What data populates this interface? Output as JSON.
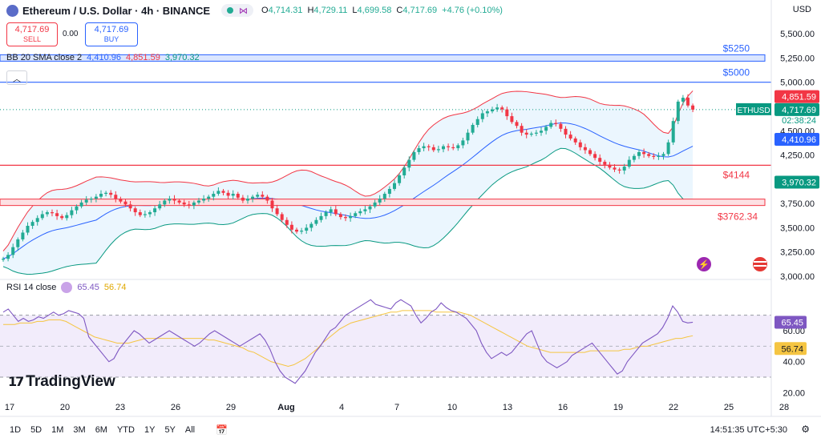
{
  "header": {
    "title": "Ethereum / U.S. Dollar · 4h · BINANCE",
    "ohlc": [
      {
        "k": "O",
        "v": "4,714.31"
      },
      {
        "k": "H",
        "v": "4,729.11"
      },
      {
        "k": "L",
        "v": "4,699.58"
      },
      {
        "k": "C",
        "v": "4,717.69"
      }
    ],
    "change": "+4.76 (+0.10%)",
    "currency": "USD"
  },
  "trade": {
    "sell_price": "4,717.69",
    "sell_label": "SELL",
    "spread": "0.00",
    "buy_price": "4,717.69",
    "buy_label": "BUY"
  },
  "indicators": {
    "bb_label": "BB 20 SMA close 2",
    "bb_basis": "4,410.96",
    "bb_upper": "4,851.59",
    "bb_lower": "3,970.32",
    "rsi_label": "RSI 14 close",
    "rsi_value": "65.45",
    "rsi_ma": "56.74"
  },
  "branding": {
    "logo": "TradingView"
  },
  "bottom": {
    "ranges": [
      "1D",
      "5D",
      "1M",
      "3M",
      "6M",
      "YTD",
      "1Y",
      "5Y",
      "All"
    ],
    "clock": "14:51:35 UTC+5:30"
  },
  "colors": {
    "up": "#22ab94",
    "down": "#f23645",
    "bb_upper": "#f23645",
    "bb_lower": "#089981",
    "bb_basis": "#2962ff",
    "rsi": "#7e57c2",
    "rsi_ma": "#f5c542"
  },
  "chart_data": [
    {
      "type": "candlestick",
      "ylim": [
        3000,
        5600
      ],
      "y_ticks": [
        "5,500.00",
        "5,250.00",
        "5,000.00",
        "4,750.00",
        "4,500.00",
        "4,250.00",
        "4,000.00",
        "3,750.00",
        "3,500.00",
        "3,250.00",
        "3,000.00"
      ],
      "y_tick_values": [
        5500,
        5250,
        5000,
        4750,
        4500,
        4250,
        4000,
        3750,
        3500,
        3250,
        3000
      ],
      "x_ticks": [
        "17",
        "20",
        "23",
        "26",
        "29",
        "Aug",
        "4",
        "7",
        "10",
        "13",
        "16",
        "19",
        "22",
        "25",
        "28"
      ],
      "candles_per_day": 6,
      "closes": [
        3180,
        3220,
        3300,
        3380,
        3450,
        3520,
        3560,
        3600,
        3640,
        3660,
        3650,
        3620,
        3600,
        3630,
        3680,
        3720,
        3760,
        3790,
        3800,
        3820,
        3850,
        3860,
        3840,
        3800,
        3770,
        3740,
        3700,
        3660,
        3630,
        3640,
        3660,
        3700,
        3740,
        3780,
        3800,
        3780,
        3760,
        3740,
        3730,
        3760,
        3780,
        3800,
        3820,
        3850,
        3880,
        3860,
        3830,
        3850,
        3810,
        3780,
        3800,
        3820,
        3840,
        3820,
        3780,
        3700,
        3640,
        3580,
        3530,
        3480,
        3460,
        3470,
        3500,
        3540,
        3580,
        3620,
        3660,
        3690,
        3640,
        3610,
        3600,
        3620,
        3650,
        3670,
        3690,
        3720,
        3760,
        3800,
        3850,
        3900,
        3960,
        4040,
        4120,
        4200,
        4280,
        4320,
        4340,
        4330,
        4300,
        4310,
        4340,
        4330,
        4320,
        4350,
        4400,
        4480,
        4560,
        4620,
        4680,
        4700,
        4720,
        4740,
        4720,
        4650,
        4590,
        4550,
        4480,
        4460,
        4470,
        4480,
        4500,
        4540,
        4580,
        4570,
        4520,
        4460,
        4420,
        4380,
        4330,
        4300,
        4260,
        4220,
        4180,
        4150,
        4120,
        4100,
        4090,
        4130,
        4200,
        4240,
        4280,
        4260,
        4240,
        4230,
        4240,
        4260,
        4380,
        4600,
        4800,
        4840,
        4760,
        4717.69
      ],
      "horizontal_levels": [
        {
          "label": "$5250",
          "value": 5250,
          "color": "#2962ff"
        },
        {
          "label": "$5000",
          "value": 5000,
          "color": "#2962ff"
        },
        {
          "label": "$4144",
          "value": 4144,
          "color": "#f23645"
        },
        {
          "label": "$3762.34",
          "value": 3762.34,
          "color": "#f23645"
        }
      ],
      "price_labels": [
        {
          "text": "4,851.59",
          "value": 4851.59,
          "color": "#f23645"
        },
        {
          "text": "ETHUSD",
          "value": 4717.69,
          "color": "#089981"
        },
        {
          "text": "4,717.69",
          "value": 4717.69,
          "color": "#089981"
        },
        {
          "text": "02:38:24",
          "value": 4717.69,
          "color": "#089981"
        },
        {
          "text": "4,410.96",
          "value": 4410.96,
          "color": "#2962ff"
        },
        {
          "text": "3,970.32",
          "value": 3970.32,
          "color": "#089981"
        }
      ]
    },
    {
      "type": "line",
      "title": "RSI 14 close",
      "ylim": [
        15,
        90
      ],
      "y_ticks": [
        "60.00",
        "40.00",
        "20.00"
      ],
      "y_tick_values": [
        60,
        40,
        20
      ],
      "band": [
        30,
        70
      ],
      "series": [
        {
          "name": "RSI",
          "values": [
            72,
            74,
            70,
            66,
            68,
            66,
            67,
            69,
            68,
            70,
            72,
            70,
            71,
            73,
            72,
            71,
            68,
            56,
            52,
            48,
            44,
            40,
            42,
            48,
            52,
            56,
            60,
            58,
            55,
            52,
            54,
            56,
            58,
            60,
            58,
            56,
            54,
            52,
            50,
            52,
            55,
            58,
            60,
            58,
            56,
            54,
            52,
            50,
            52,
            54,
            56,
            58,
            54,
            48,
            40,
            34,
            30,
            28,
            26,
            30,
            34,
            40,
            46,
            50,
            55,
            60,
            62,
            66,
            70,
            72,
            74,
            76,
            78,
            80,
            77,
            76,
            75,
            74,
            78,
            80,
            78,
            76,
            70,
            65,
            68,
            72,
            74,
            78,
            75,
            73,
            72,
            70,
            68,
            64,
            60,
            52,
            46,
            42,
            44,
            46,
            44,
            46,
            50,
            54,
            58,
            60,
            52,
            44,
            40,
            38,
            36,
            38,
            40,
            44,
            46,
            48,
            50,
            52,
            48,
            44,
            40,
            36,
            32,
            34,
            40,
            44,
            48,
            52,
            54,
            56,
            58,
            62,
            68,
            76,
            72,
            66,
            65,
            65.45
          ]
        },
        {
          "name": "MA",
          "values": [
            64,
            64,
            64,
            65,
            65,
            65,
            66,
            66,
            67,
            67,
            67,
            66,
            64,
            62,
            60,
            58,
            56,
            55,
            54,
            53,
            52,
            52,
            52,
            53,
            54,
            55,
            55,
            55,
            55,
            55,
            55,
            55,
            55,
            55,
            55,
            55,
            54,
            54,
            53,
            52,
            51,
            50,
            49,
            47,
            46,
            44,
            42,
            40,
            39,
            38,
            37,
            38,
            40,
            42,
            45,
            48,
            52,
            55,
            58,
            61,
            63,
            65,
            66,
            67,
            68,
            69,
            70,
            71,
            72,
            72,
            73,
            73,
            73,
            73,
            73,
            73,
            72,
            72,
            72,
            72,
            72,
            71,
            70,
            68,
            66,
            64,
            62,
            60,
            58,
            56,
            54,
            52,
            50,
            49,
            48,
            47,
            46,
            46,
            46,
            46,
            46,
            46,
            46,
            47,
            47,
            47,
            47,
            47,
            47,
            48,
            48,
            49,
            50,
            50,
            51,
            52,
            53,
            54,
            55,
            55,
            56,
            56.74
          ]
        }
      ]
    }
  ]
}
